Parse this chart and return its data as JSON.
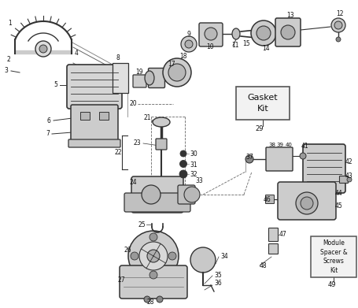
{
  "bg_color": "#ffffff",
  "lc": "#333333",
  "lbl": "#111111",
  "gasket_kit_label": "Gasket\nKit",
  "gasket_kit_number": "29",
  "module_label": "Module\nSpacer &\nScrews\nKit",
  "module_number": "49",
  "fig_width": 4.56,
  "fig_height": 3.91,
  "dpi": 100
}
